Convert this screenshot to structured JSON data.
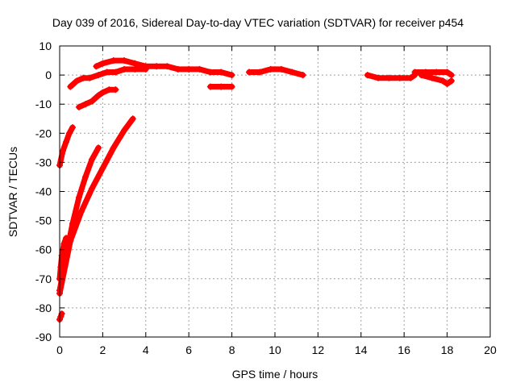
{
  "chart_data": {
    "type": "scatter",
    "title": "Day 039 of 2016, Sidereal Day-to-day VTEC variation (SDTVAR) for receiver p454",
    "xlabel": "GPS time / hours",
    "ylabel": "SDTVAR / TECUs",
    "xlim": [
      0,
      20
    ],
    "ylim": [
      -90,
      10
    ],
    "xticks": [
      0,
      2,
      4,
      6,
      8,
      10,
      12,
      14,
      16,
      18,
      20
    ],
    "yticks": [
      10,
      0,
      -10,
      -20,
      -30,
      -40,
      -50,
      -60,
      -70,
      -80,
      -90
    ],
    "grid": true,
    "legend": "none",
    "marker": "plus",
    "color": "#ff0000",
    "segments": [
      {
        "x": [
          0.0,
          0.15,
          0.3,
          0.45,
          0.6
        ],
        "y": [
          -31,
          -26,
          -23,
          -20,
          -18
        ]
      },
      {
        "x": [
          0.0,
          0.05,
          0.1,
          0.15,
          0.2,
          0.3
        ],
        "y": [
          -70,
          -66,
          -62,
          -60,
          -58,
          -56
        ]
      },
      {
        "x": [
          0.0,
          0.3,
          0.6,
          0.9,
          1.2,
          1.5,
          1.8
        ],
        "y": [
          -74,
          -62,
          -51,
          -42,
          -35,
          -29,
          -25
        ]
      },
      {
        "x": [
          0.0,
          0.5,
          1.0,
          1.5,
          2.0,
          2.5,
          3.0,
          3.4
        ],
        "y": [
          -75,
          -57,
          -47,
          -39,
          -32,
          -25,
          -19,
          -15
        ]
      },
      {
        "x": [
          0.0,
          0.05,
          0.1
        ],
        "y": [
          -84,
          -83,
          -82
        ]
      },
      {
        "x": [
          0.5,
          0.8,
          1.1,
          1.4,
          1.8,
          2.2,
          2.6,
          3.0,
          3.5,
          4.0
        ],
        "y": [
          -4,
          -2,
          -1,
          -1,
          0,
          1,
          1,
          2,
          2,
          2
        ]
      },
      {
        "x": [
          0.9,
          1.2,
          1.5,
          1.8,
          2.0,
          2.3,
          2.6
        ],
        "y": [
          -11,
          -10,
          -9,
          -7,
          -6,
          -5,
          -5
        ]
      },
      {
        "x": [
          1.7,
          2.0,
          2.5,
          3.0,
          3.5,
          4.0,
          4.5,
          5.0,
          5.5,
          6.0
        ],
        "y": [
          3,
          4,
          5,
          5,
          4,
          3,
          3,
          3,
          2,
          2
        ]
      },
      {
        "x": [
          6.0,
          6.5,
          7.0,
          7.5,
          8.0
        ],
        "y": [
          2,
          2,
          1,
          1,
          0
        ]
      },
      {
        "x": [
          7.0,
          7.5,
          8.0
        ],
        "y": [
          -4,
          -4,
          -4
        ]
      },
      {
        "x": [
          8.8,
          9.3,
          9.8,
          10.3,
          10.8,
          11.3
        ],
        "y": [
          1,
          1,
          2,
          2,
          1,
          0
        ]
      },
      {
        "x": [
          14.3,
          14.8,
          15.3,
          15.8,
          16.3,
          16.5
        ],
        "y": [
          0,
          -1,
          -1,
          -1,
          -1,
          0
        ]
      },
      {
        "x": [
          16.5,
          17.0,
          17.5,
          18.0,
          18.2
        ],
        "y": [
          1,
          1,
          1,
          1,
          0
        ]
      },
      {
        "x": [
          16.8,
          17.3,
          17.8,
          18.0,
          18.2
        ],
        "y": [
          0,
          -1,
          -2,
          -3,
          -2
        ]
      }
    ]
  }
}
